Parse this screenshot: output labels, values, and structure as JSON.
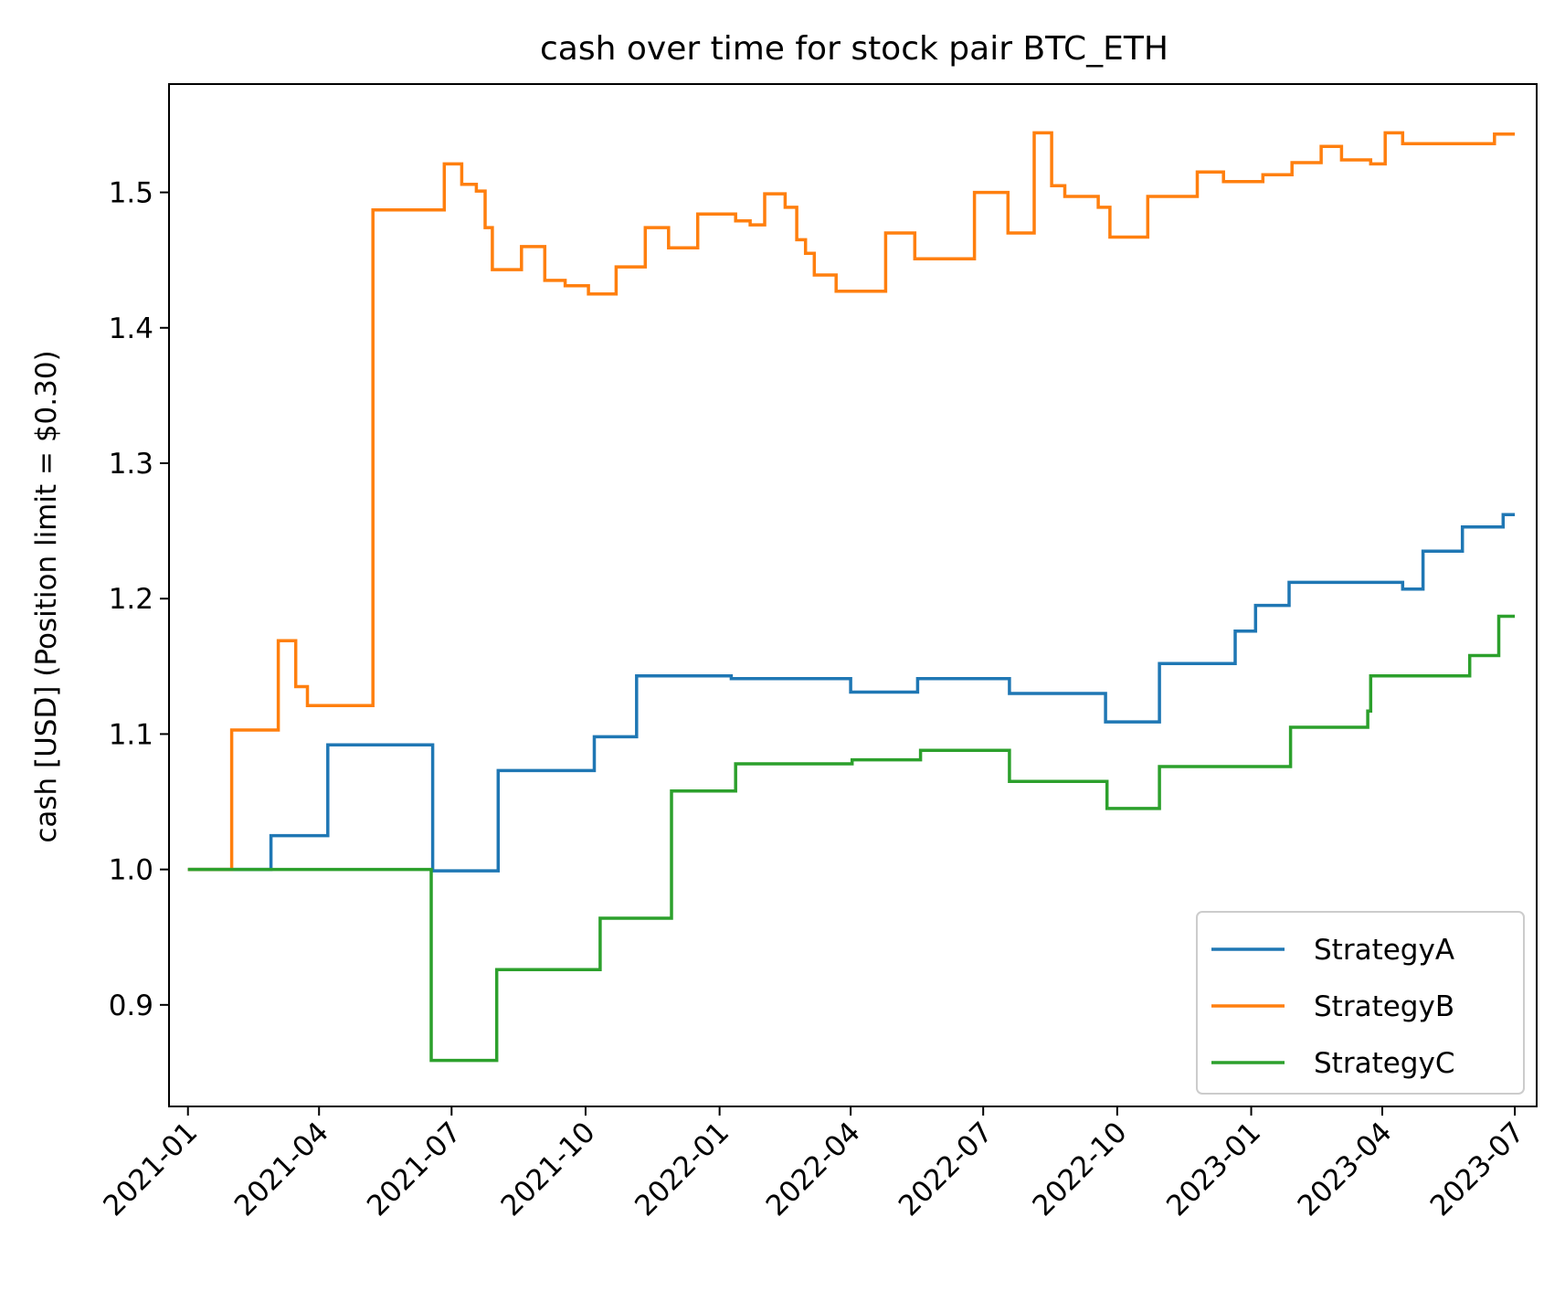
{
  "chart_data": {
    "type": "line",
    "title": "cash over time for stock pair BTC_ETH",
    "xlabel": "",
    "ylabel": "cash [USD] (Position limit = $0.30)",
    "x_ticks": [
      "2021-01",
      "2021-04",
      "2021-07",
      "2021-10",
      "2022-01",
      "2022-04",
      "2022-07",
      "2022-10",
      "2023-01",
      "2023-04",
      "2023-07"
    ],
    "y_ticks": [
      "0.9",
      "1.0",
      "1.1",
      "1.2",
      "1.3",
      "1.4",
      "1.5"
    ],
    "xlim": [
      "2020-12-19",
      "2023-07-16"
    ],
    "ylim": [
      0.825,
      1.58
    ],
    "grid": false,
    "legend_position": "lower-right",
    "colors": {
      "StrategyA": "#1f77b4",
      "StrategyB": "#ff7f0e",
      "StrategyC": "#2ca02c"
    },
    "series": [
      {
        "name": "StrategyA",
        "color": "#1f77b4",
        "step": true,
        "points": [
          [
            "2021-01-01",
            1.0
          ],
          [
            "2021-02-27",
            1.025
          ],
          [
            "2021-04-07",
            1.092
          ],
          [
            "2021-06-18",
            0.999
          ],
          [
            "2021-08-02",
            1.073
          ],
          [
            "2021-10-07",
            1.098
          ],
          [
            "2021-11-05",
            1.143
          ],
          [
            "2022-01-09",
            1.141
          ],
          [
            "2022-04-01",
            1.131
          ],
          [
            "2022-05-17",
            1.141
          ],
          [
            "2022-07-19",
            1.13
          ],
          [
            "2022-09-23",
            1.109
          ],
          [
            "2022-10-30",
            1.152
          ],
          [
            "2022-12-21",
            1.176
          ],
          [
            "2023-01-04",
            1.195
          ],
          [
            "2023-01-27",
            1.212
          ],
          [
            "2023-04-15",
            1.207
          ],
          [
            "2023-04-29",
            1.235
          ],
          [
            "2023-05-26",
            1.253
          ],
          [
            "2023-06-23",
            1.262
          ],
          [
            "2023-07-01",
            1.262
          ]
        ]
      },
      {
        "name": "StrategyB",
        "color": "#ff7f0e",
        "step": true,
        "points": [
          [
            "2021-01-01",
            1.0
          ],
          [
            "2021-01-31",
            1.103
          ],
          [
            "2021-03-04",
            1.169
          ],
          [
            "2021-03-16",
            1.135
          ],
          [
            "2021-03-24",
            1.121
          ],
          [
            "2021-05-08",
            1.487
          ],
          [
            "2021-06-26",
            1.521
          ],
          [
            "2021-07-08",
            1.506
          ],
          [
            "2021-07-18",
            1.501
          ],
          [
            "2021-07-24",
            1.474
          ],
          [
            "2021-07-29",
            1.443
          ],
          [
            "2021-08-18",
            1.46
          ],
          [
            "2021-09-03",
            1.435
          ],
          [
            "2021-09-17",
            1.431
          ],
          [
            "2021-10-03",
            1.425
          ],
          [
            "2021-10-22",
            1.445
          ],
          [
            "2021-11-11",
            1.474
          ],
          [
            "2021-11-27",
            1.459
          ],
          [
            "2021-12-17",
            1.484
          ],
          [
            "2022-01-12",
            1.479
          ],
          [
            "2022-01-22",
            1.476
          ],
          [
            "2022-02-01",
            1.499
          ],
          [
            "2022-02-15",
            1.489
          ],
          [
            "2022-02-23",
            1.465
          ],
          [
            "2022-03-01",
            1.455
          ],
          [
            "2022-03-07",
            1.439
          ],
          [
            "2022-03-22",
            1.427
          ],
          [
            "2022-04-25",
            1.47
          ],
          [
            "2022-05-15",
            1.451
          ],
          [
            "2022-06-25",
            1.5
          ],
          [
            "2022-07-18",
            1.47
          ],
          [
            "2022-08-05",
            1.544
          ],
          [
            "2022-08-17",
            1.505
          ],
          [
            "2022-08-26",
            1.497
          ],
          [
            "2022-09-18",
            1.489
          ],
          [
            "2022-09-26",
            1.467
          ],
          [
            "2022-10-22",
            1.497
          ],
          [
            "2022-11-25",
            1.515
          ],
          [
            "2022-12-13",
            1.508
          ],
          [
            "2023-01-09",
            1.513
          ],
          [
            "2023-01-29",
            1.522
          ],
          [
            "2023-02-18",
            1.534
          ],
          [
            "2023-03-04",
            1.524
          ],
          [
            "2023-03-24",
            1.521
          ],
          [
            "2023-04-03",
            1.544
          ],
          [
            "2023-04-15",
            1.536
          ],
          [
            "2023-04-27",
            1.536
          ],
          [
            "2023-06-17",
            1.543
          ],
          [
            "2023-07-01",
            1.543
          ]
        ]
      },
      {
        "name": "StrategyC",
        "color": "#2ca02c",
        "step": true,
        "points": [
          [
            "2021-01-01",
            1.0
          ],
          [
            "2021-06-17",
            0.859
          ],
          [
            "2021-08-01",
            0.926
          ],
          [
            "2021-10-11",
            0.964
          ],
          [
            "2021-11-29",
            1.058
          ],
          [
            "2022-01-12",
            1.078
          ],
          [
            "2022-04-02",
            1.081
          ],
          [
            "2022-05-19",
            1.088
          ],
          [
            "2022-07-19",
            1.065
          ],
          [
            "2022-09-24",
            1.045
          ],
          [
            "2022-10-30",
            1.076
          ],
          [
            "2023-01-28",
            1.105
          ],
          [
            "2023-03-22",
            1.117
          ],
          [
            "2023-03-24",
            1.143
          ],
          [
            "2023-05-31",
            1.158
          ],
          [
            "2023-06-20",
            1.187
          ],
          [
            "2023-07-01",
            1.187
          ]
        ]
      }
    ]
  }
}
